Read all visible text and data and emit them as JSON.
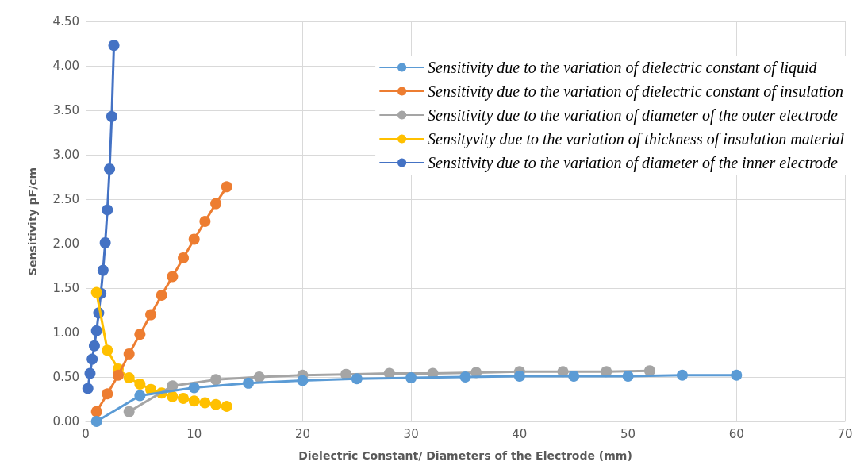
{
  "chart_data": {
    "type": "line",
    "xlabel": "Dielectric Constant/ Diameters of the Electrode (mm)",
    "ylabel": "Sensitivity pF/cm",
    "xlim": [
      0,
      70
    ],
    "xticks": [
      0,
      10,
      20,
      30,
      40,
      50,
      60,
      70
    ],
    "ylim": [
      0,
      4.5
    ],
    "yticks": [
      {
        "value": 0,
        "label": "0.00"
      },
      {
        "value": 0.5,
        "label": "0.50"
      },
      {
        "value": 1,
        "label": "1.00"
      },
      {
        "value": 1.5,
        "label": "1.50"
      },
      {
        "value": 2,
        "label": "2.00"
      },
      {
        "value": 2.5,
        "label": "2.50"
      },
      {
        "value": 3,
        "label": "3.00"
      },
      {
        "value": 3.5,
        "label": "3.50"
      },
      {
        "value": 4,
        "label": "4.00"
      },
      {
        "value": 4.5,
        "label": "4.50"
      }
    ],
    "grid": true,
    "legend": "top right",
    "marker": "circle",
    "line_style": "solid",
    "series": [
      {
        "name": "Sensitivity due to the variation of dielectric constant of liquid",
        "color": "#5b9bd5",
        "x": [
          1,
          5,
          10,
          15,
          20,
          25,
          30,
          35,
          40,
          45,
          50,
          55,
          60
        ],
        "values": [
          0,
          0.29,
          0.38,
          0.43,
          0.46,
          0.48,
          0.49,
          0.5,
          0.51,
          0.51,
          0.51,
          0.52,
          0.52
        ]
      },
      {
        "name": "Sensitivity due to the variation of dielectric constant of insulation",
        "color": "#ed7d31",
        "x": [
          1,
          2,
          3,
          4,
          5,
          6,
          7,
          8,
          9,
          10,
          11,
          12,
          13
        ],
        "values": [
          0.11,
          0.31,
          0.52,
          0.76,
          0.98,
          1.2,
          1.42,
          1.63,
          1.84,
          2.05,
          2.25,
          2.45,
          2.64
        ]
      },
      {
        "name": "Sensitivity due to the variation of diameter of the outer electrode",
        "color": "#a5a5a5",
        "x": [
          4,
          8,
          12,
          16,
          20,
          24,
          28,
          32,
          36,
          40,
          44,
          48,
          52
        ],
        "values": [
          0.11,
          0.4,
          0.47,
          0.5,
          0.52,
          0.53,
          0.54,
          0.54,
          0.55,
          0.56,
          0.56,
          0.56,
          0.57
        ]
      },
      {
        "name": "Sensityvity due to the variation of thickness of insulation material",
        "color": "#ffc000",
        "x": [
          1,
          2,
          3,
          4,
          5,
          6,
          7,
          8,
          9,
          10,
          11,
          12,
          13
        ],
        "values": [
          1.45,
          0.8,
          0.59,
          0.49,
          0.42,
          0.36,
          0.32,
          0.28,
          0.26,
          0.23,
          0.21,
          0.19,
          0.17
        ]
      },
      {
        "name": "Sensitivity due to the variation of diameter of the inner electrode",
        "color": "#4472c4",
        "x": [
          0.2,
          0.4,
          0.6,
          0.8,
          1,
          1.2,
          1.4,
          1.6,
          1.8,
          2,
          2.2,
          2.4,
          2.6
        ],
        "values": [
          0.37,
          0.54,
          0.7,
          0.85,
          1.02,
          1.22,
          1.44,
          1.7,
          2.01,
          2.38,
          2.84,
          3.43,
          4.23
        ]
      }
    ]
  }
}
